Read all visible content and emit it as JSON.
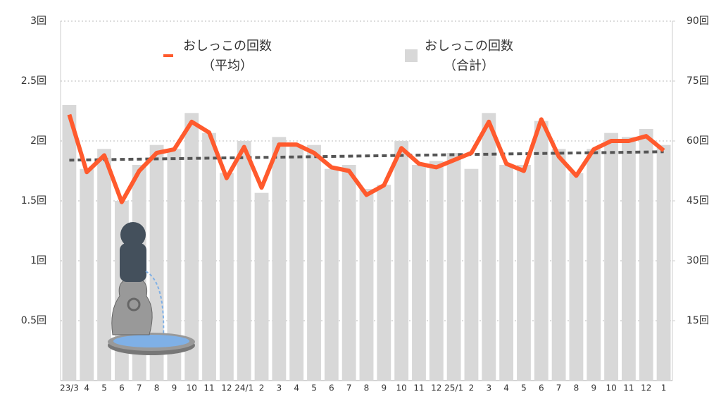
{
  "chart_data": {
    "type": "combo",
    "categories": [
      "23/3",
      "4",
      "5",
      "6",
      "7",
      "8",
      "9",
      "10",
      "11",
      "12",
      "24/1",
      "2",
      "3",
      "4",
      "5",
      "6",
      "7",
      "8",
      "9",
      "10",
      "11",
      "12",
      "25/1",
      "2",
      "3",
      "4",
      "5",
      "6",
      "7",
      "8",
      "9",
      "10",
      "11",
      "12",
      "1"
    ],
    "series": [
      {
        "name": "おしっこの回数\n（平均）",
        "color": "#ff5a2d",
        "kind": "line",
        "axis": "y",
        "values": [
          2.22,
          1.74,
          1.88,
          1.49,
          1.75,
          1.9,
          1.93,
          2.16,
          2.07,
          1.69,
          1.95,
          1.61,
          1.97,
          1.97,
          1.9,
          1.78,
          1.75,
          1.55,
          1.63,
          1.94,
          1.81,
          1.78,
          1.84,
          1.9,
          2.16,
          1.81,
          1.75,
          2.18,
          1.87,
          1.71,
          1.93,
          2.0,
          2.0,
          2.04,
          1.92
        ]
      },
      {
        "name": "おしっこの回数\n（合計）",
        "color": "#d8d8d8",
        "kind": "bar",
        "axis": "y2",
        "values": [
          69,
          53,
          58,
          45,
          54,
          59,
          58,
          67,
          62,
          52,
          60,
          47,
          61,
          59,
          59,
          53,
          54,
          48,
          49,
          60,
          54,
          55,
          57,
          53,
          67,
          54,
          54,
          65,
          58,
          52,
          58,
          62,
          61,
          63,
          59
        ]
      }
    ],
    "trendline": {
      "color": "#555555",
      "values": [
        1.84,
        1.91
      ]
    },
    "ylim": [
      0,
      3
    ],
    "yticks": [
      {
        "value": 0.5,
        "label": "0.5回"
      },
      {
        "value": 1,
        "label": "1回"
      },
      {
        "value": 1.5,
        "label": "1.5回"
      },
      {
        "value": 2,
        "label": "2回"
      },
      {
        "value": 2.5,
        "label": "2.5回"
      },
      {
        "value": 3,
        "label": "3回"
      }
    ],
    "y2lim": [
      0,
      90
    ],
    "y2ticks": [
      {
        "value": 15,
        "label": "15回"
      },
      {
        "value": 30,
        "label": "30回"
      },
      {
        "value": 45,
        "label": "45回"
      },
      {
        "value": 60,
        "label": "60回"
      },
      {
        "value": 75,
        "label": "75回"
      },
      {
        "value": 90,
        "label": "90回"
      }
    ],
    "grid": true
  }
}
